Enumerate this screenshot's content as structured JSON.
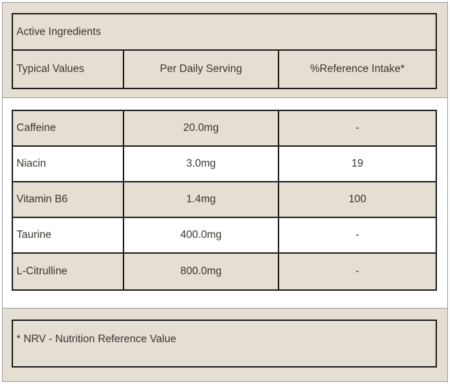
{
  "table": {
    "title": "Active Ingredients",
    "columns": [
      "Typical Values",
      "Per Daily Serving",
      "%Reference Intake*"
    ],
    "rows": [
      {
        "name": "Caffeine",
        "per_serving": "20.0mg",
        "reference_intake": "-"
      },
      {
        "name": "Niacin",
        "per_serving": "3.0mg",
        "reference_intake": "19"
      },
      {
        "name": "Vitamin B6",
        "per_serving": "1.4mg",
        "reference_intake": "100"
      },
      {
        "name": "Taurine",
        "per_serving": "400.0mg",
        "reference_intake": "-"
      },
      {
        "name": "L-Citrulline",
        "per_serving": "800.0mg",
        "reference_intake": "-"
      }
    ]
  },
  "footnote": "* NRV - Nutrition Reference Value",
  "colors": {
    "panel_background": "#e5ded3",
    "table_border": "#1c1c1c",
    "frame_border": "#9a9a9a",
    "text": "#3a362f",
    "alt_row_background": "#ffffff"
  }
}
